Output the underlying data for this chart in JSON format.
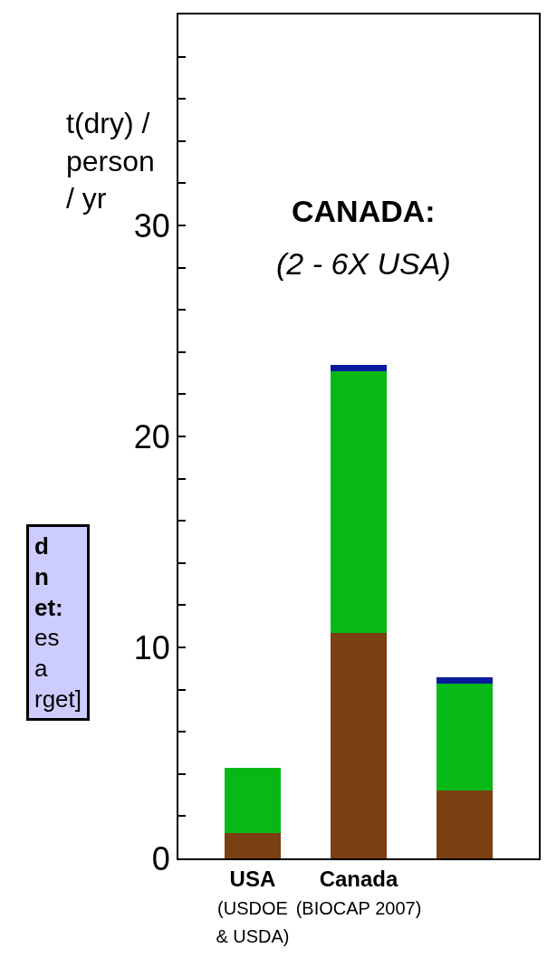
{
  "chart_data": {
    "type": "bar",
    "stacked": true,
    "ylabel": "t(dry) /\nperson\n/ yr",
    "categories": [
      "USA\n(USDOE\n& USDA)",
      "Canada\n(BIOCAP 2007)",
      null
    ],
    "series": [
      {
        "color": "#7b3f14",
        "values": [
          1.2,
          10.7,
          3.2
        ]
      },
      {
        "color": "#07b915",
        "values": [
          3.1,
          12.4,
          5.1
        ]
      },
      {
        "color": "#0a1a9c",
        "values": [
          null,
          0.3,
          0.3
        ]
      }
    ],
    "ylim": [
      0,
      40
    ],
    "yticks": [
      0,
      {
        "value": 2,
        "label": null
      },
      {
        "value": 4,
        "label": null
      },
      {
        "value": 6,
        "label": null
      },
      {
        "value": 8,
        "label": null
      },
      10,
      {
        "value": 12,
        "label": null
      },
      {
        "value": 14,
        "label": null
      },
      {
        "value": 16,
        "label": null
      },
      {
        "value": 18,
        "label": null
      },
      20,
      {
        "value": 22,
        "label": null
      },
      {
        "value": 24,
        "label": null
      },
      {
        "value": 26,
        "label": null
      },
      {
        "value": 28,
        "label": null
      },
      30,
      {
        "value": 32,
        "label": null
      },
      {
        "value": 34,
        "label": null
      },
      {
        "value": 36,
        "label": null
      },
      {
        "value": 38,
        "label": null
      }
    ],
    "annotations": [
      "CANADA:",
      "(2 - 6X USA)",
      "d\nn\net:\nes\na\nrget]"
    ],
    "legend": false
  }
}
